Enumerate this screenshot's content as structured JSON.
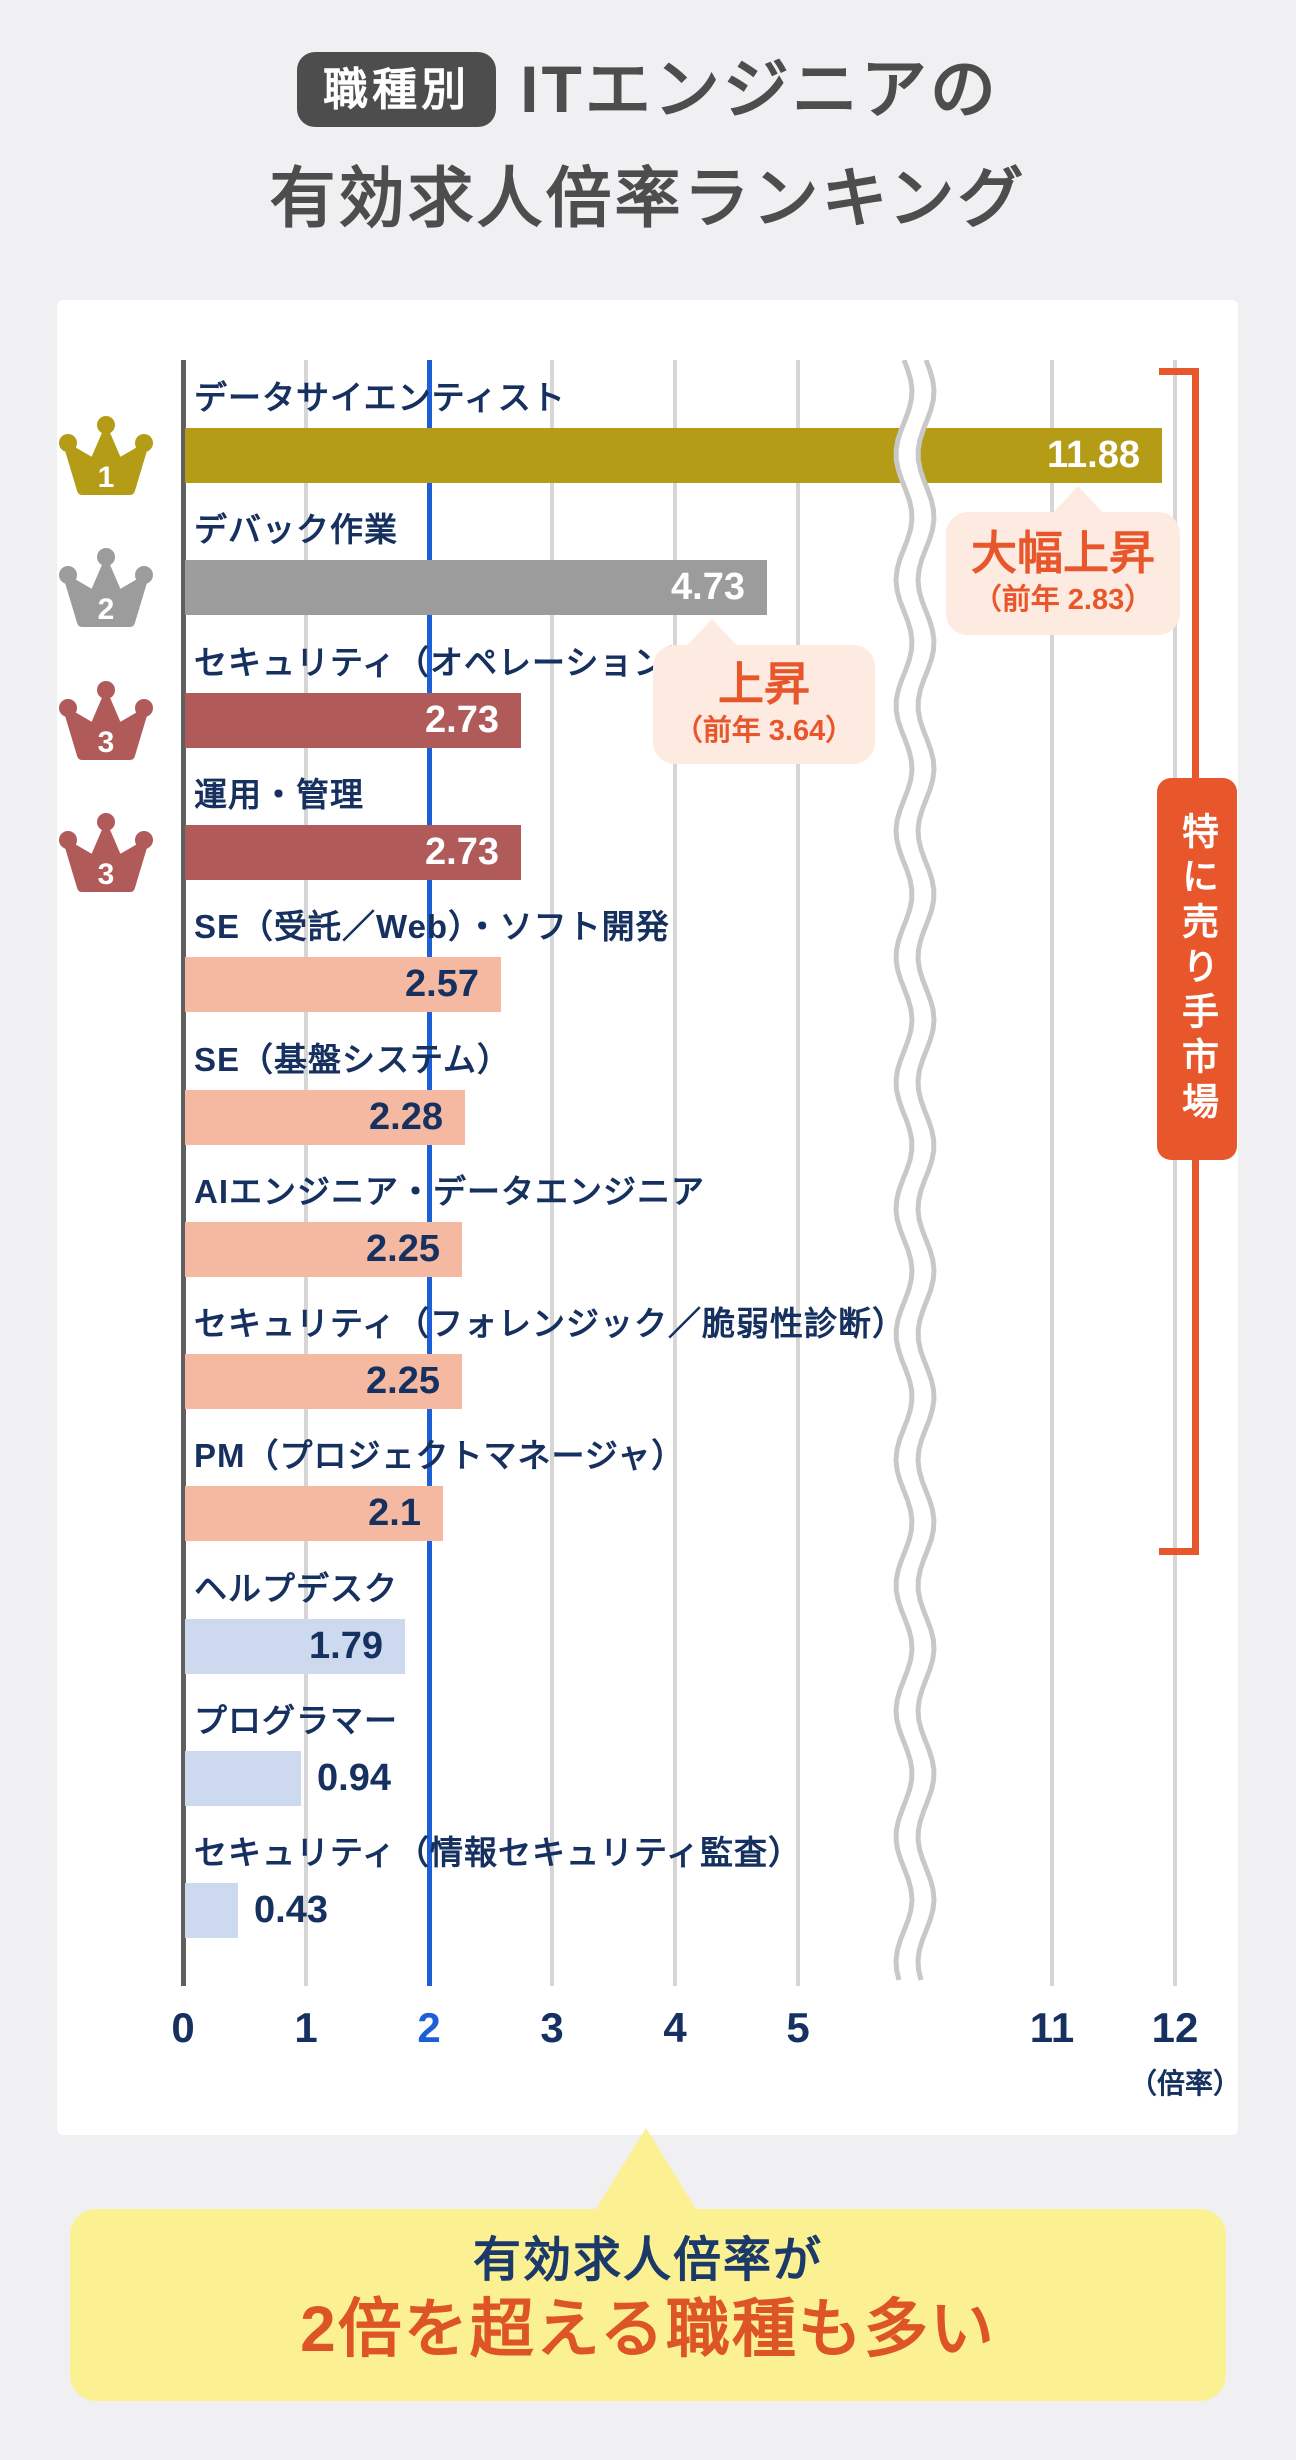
{
  "page_background": "#f0f0f2",
  "header": {
    "badge": "職種別",
    "title_line1": "ITエンジニアの",
    "title_line2": "有効求人倍率ランキング"
  },
  "chart_data": {
    "type": "bar",
    "orientation": "horizontal",
    "title": "職種別 ITエンジニアの有効求人倍率ランキング",
    "xlabel": "（倍率）",
    "ylabel": "",
    "x_ticks": [
      0,
      1,
      2,
      3,
      4,
      5,
      11,
      12
    ],
    "x_axis_break_between": [
      5,
      11
    ],
    "reference_line_x": 2,
    "grid": true,
    "bars": [
      {
        "label": "データサイエンティスト",
        "value": 11.88,
        "rank": 1,
        "color_key": "gold",
        "value_inside": true,
        "value_color": "white"
      },
      {
        "label": "デバック作業",
        "value": 4.73,
        "rank": 2,
        "color_key": "silver",
        "value_inside": true,
        "value_color": "white"
      },
      {
        "label": "セキュリティ（オペレーション）",
        "value": 2.73,
        "rank": 3,
        "color_key": "bronze",
        "value_inside": true,
        "value_color": "white"
      },
      {
        "label": "運用・管理",
        "value": 2.73,
        "rank": 3,
        "color_key": "bronze",
        "value_inside": true,
        "value_color": "white"
      },
      {
        "label": "SE（受託／Web）・ソフト開発",
        "value": 2.57,
        "rank": null,
        "color_key": "salmon",
        "value_inside": true,
        "value_color": "navy"
      },
      {
        "label": "SE（基盤システム）",
        "value": 2.28,
        "rank": null,
        "color_key": "salmon",
        "value_inside": true,
        "value_color": "navy"
      },
      {
        "label": "AIエンジニア・データエンジニア",
        "value": 2.25,
        "rank": null,
        "color_key": "salmon",
        "value_inside": true,
        "value_color": "navy"
      },
      {
        "label": "セキュリティ（フォレンジック／脆弱性診断）",
        "value": 2.25,
        "rank": null,
        "color_key": "salmon",
        "value_inside": true,
        "value_color": "navy"
      },
      {
        "label": "PM（プロジェクトマネージャ）",
        "value": 2.1,
        "rank": null,
        "color_key": "salmon",
        "value_inside": true,
        "value_color": "navy"
      },
      {
        "label": "ヘルプデスク",
        "value": 1.79,
        "rank": null,
        "color_key": "lightblue",
        "value_inside": true,
        "value_color": "navy"
      },
      {
        "label": "プログラマー",
        "value": 0.94,
        "rank": null,
        "color_key": "lightblue",
        "value_inside": false,
        "value_color": "navy"
      },
      {
        "label": "セキュリティ（情報セキュリティ監査）",
        "value": 0.43,
        "rank": null,
        "color_key": "lightblue",
        "value_inside": false,
        "value_color": "navy"
      }
    ]
  },
  "annotations": [
    {
      "main": "大幅上昇",
      "sub": "（前年 2.83）",
      "points_to": "データサイエンティスト"
    },
    {
      "main": "上昇",
      "sub": "（前年 3.64）",
      "points_to": "デバック作業"
    }
  ],
  "bracket": {
    "label": "特に売り手市場"
  },
  "callout": {
    "line1": "有効求人倍率が",
    "line2": "2倍を超える職種も多い"
  },
  "colors": {
    "gold": "#b49c16",
    "silver": "#9c9c9c",
    "bronze": "#b05a5a",
    "salmon": "#f5b8a0",
    "lightblue": "#ccd9ee",
    "navy": "#16305f",
    "blue": "#1c5fd6",
    "orange": "#e8562c",
    "bubble_bg": "#fdeae0",
    "yellow": "#fcf192",
    "callout_accent": "#dd5426",
    "grid": "#d6d6d6",
    "axis": "#5f5f5f",
    "break_mark": "#c8c8c8",
    "title_gray": "#4d4d4d",
    "white": "#ffffff"
  }
}
